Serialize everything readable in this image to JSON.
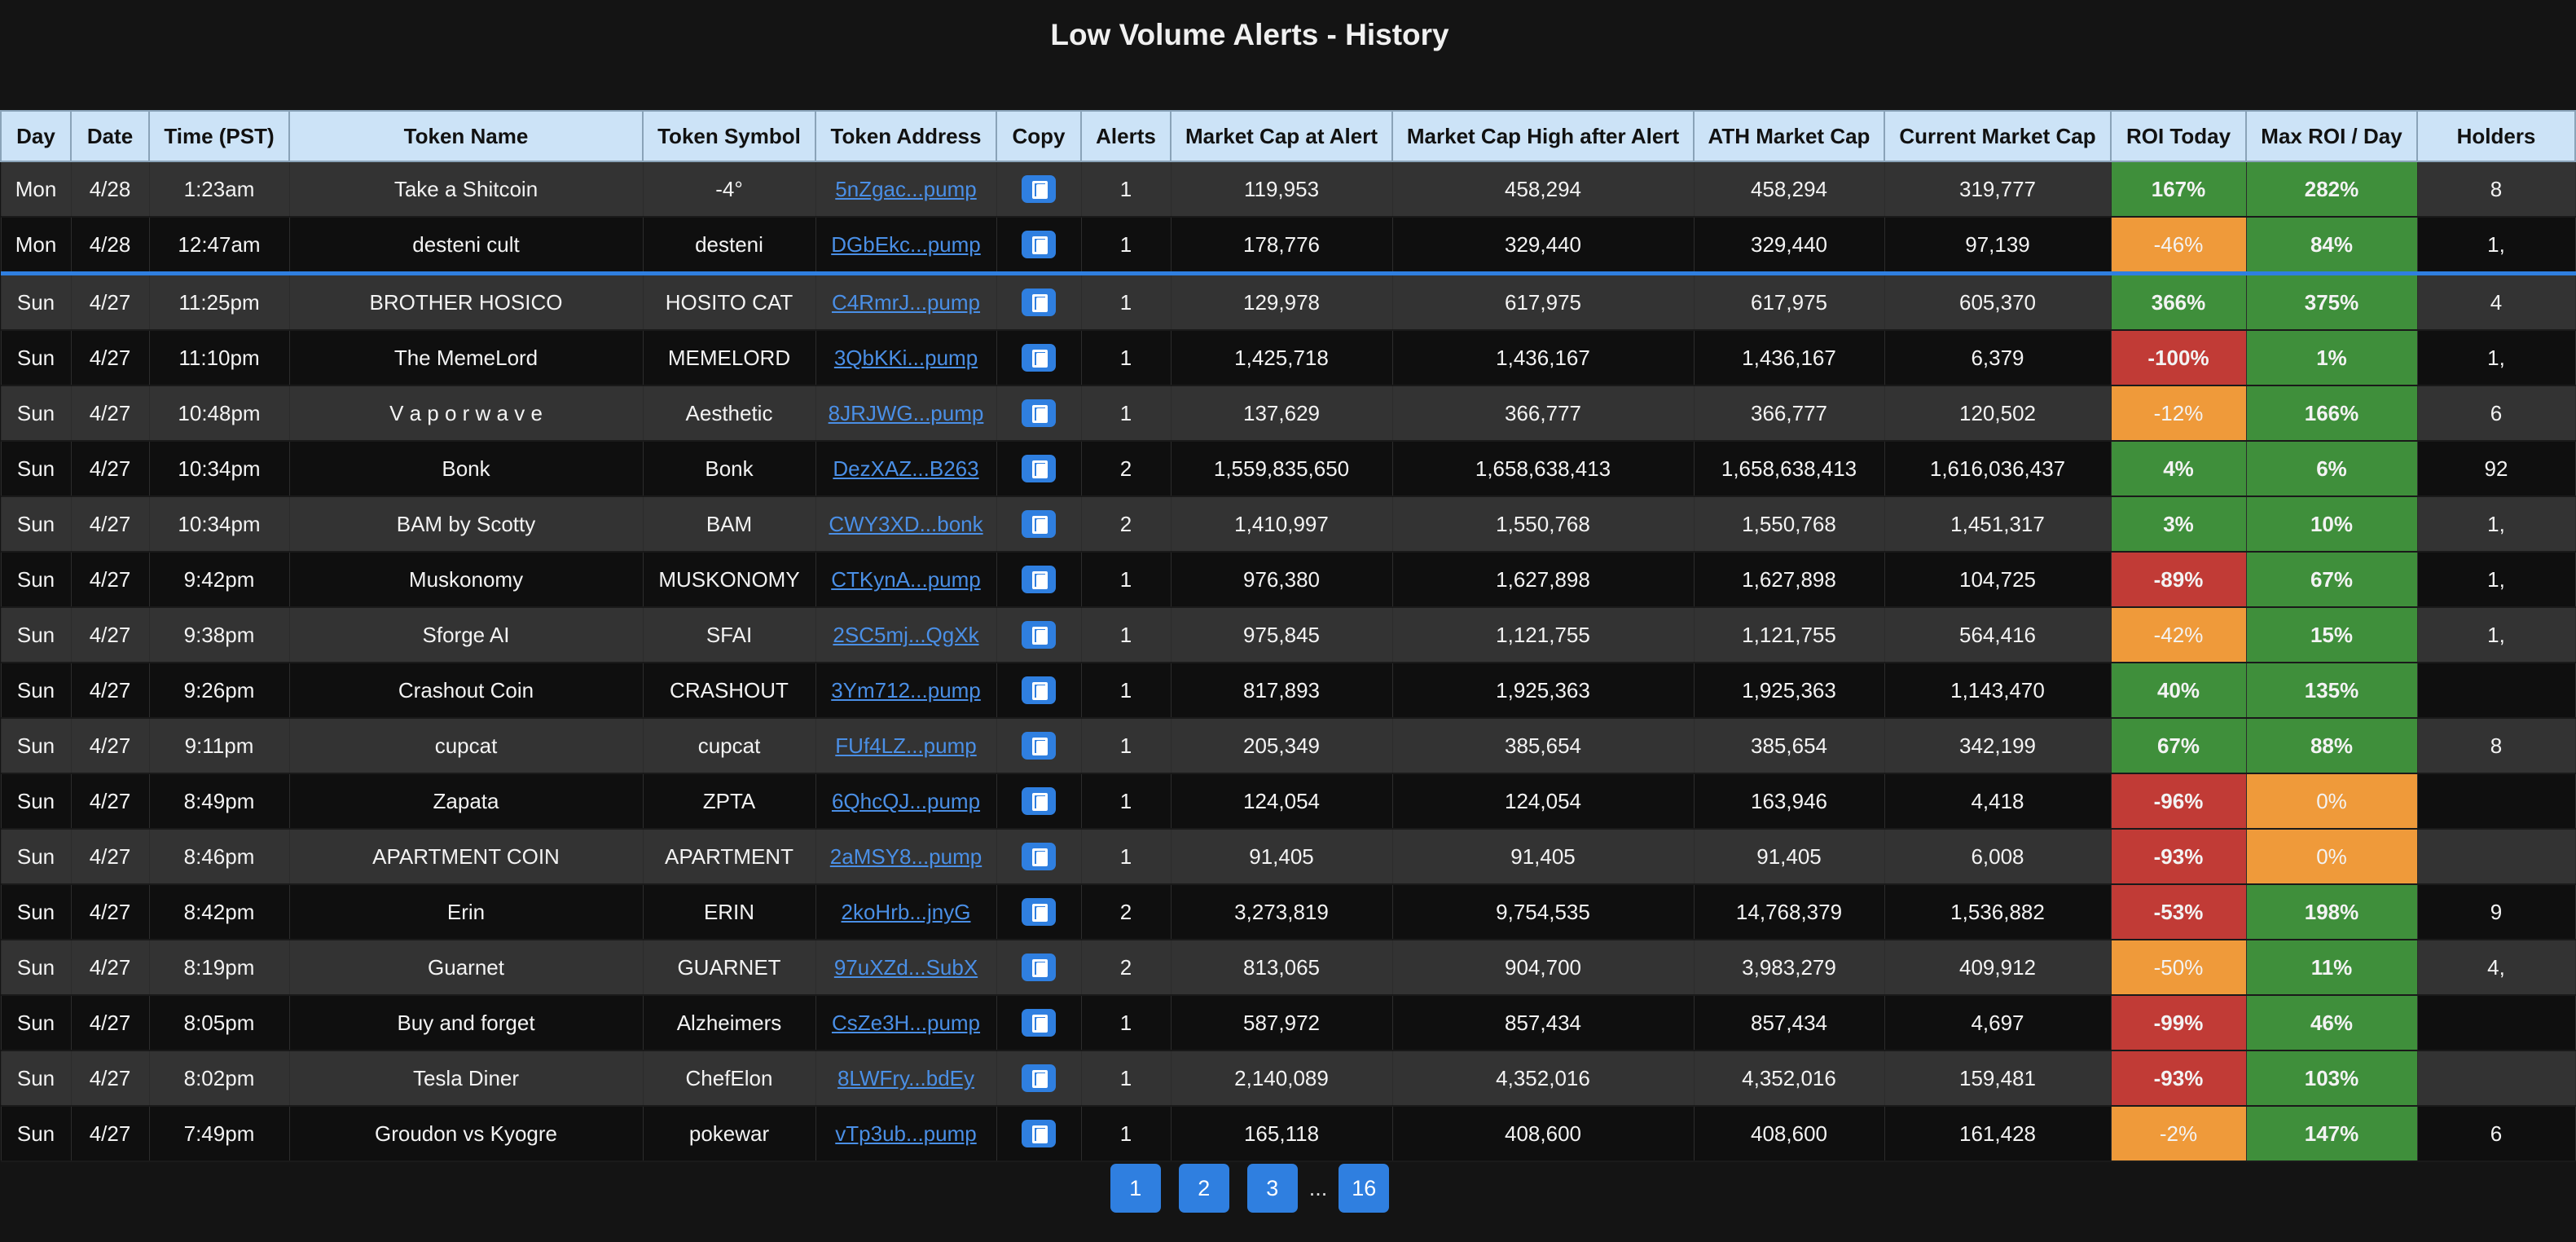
{
  "page": {
    "title": "Low Volume Alerts - History"
  },
  "colors": {
    "positive": "#3f8f3b",
    "warning": "#ef9a3a",
    "negative": "#c13b36",
    "accent": "#2f7fe0",
    "header_bg": "#cce3f7"
  },
  "table": {
    "columns": [
      "Day",
      "Date",
      "Time (PST)",
      "Token Name",
      "Token Symbol",
      "Token Address",
      "Copy",
      "Alerts",
      "Market Cap at Alert",
      "Market Cap High after Alert",
      "ATH Market Cap",
      "Current Market Cap",
      "ROI Today",
      "Max ROI / Day",
      "Holders"
    ],
    "rows": [
      {
        "day": "Mon",
        "date": "4/28",
        "time": "1:23am",
        "name": "Take a Shitcoin",
        "symbol": "-4°",
        "address": "5nZgac...pump",
        "alerts": "1",
        "mcap_alert": "119,953",
        "mcap_high": "458,294",
        "ath": "458,294",
        "current": "319,777",
        "roi_today": "167%",
        "roi_today_status": "positive",
        "max_roi": "282%",
        "max_roi_status": "positive",
        "holders": "8"
      },
      {
        "day": "Mon",
        "date": "4/28",
        "time": "12:47am",
        "name": "desteni cult",
        "symbol": "desteni",
        "address": "DGbEkc...pump",
        "alerts": "1",
        "mcap_alert": "178,776",
        "mcap_high": "329,440",
        "ath": "329,440",
        "current": "97,139",
        "roi_today": "-46%",
        "roi_today_status": "warning",
        "max_roi": "84%",
        "max_roi_status": "positive",
        "holders": "1,"
      },
      {
        "day": "Sun",
        "date": "4/27",
        "time": "11:25pm",
        "name": "BROTHER HOSICO",
        "symbol": "HOSITO CAT",
        "address": "C4RmrJ...pump",
        "alerts": "1",
        "mcap_alert": "129,978",
        "mcap_high": "617,975",
        "ath": "617,975",
        "current": "605,370",
        "roi_today": "366%",
        "roi_today_status": "positive",
        "max_roi": "375%",
        "max_roi_status": "positive",
        "holders": "4"
      },
      {
        "day": "Sun",
        "date": "4/27",
        "time": "11:10pm",
        "name": "The MemeLord",
        "symbol": "MEMELORD",
        "address": "3QbKKi...pump",
        "alerts": "1",
        "mcap_alert": "1,425,718",
        "mcap_high": "1,436,167",
        "ath": "1,436,167",
        "current": "6,379",
        "roi_today": "-100%",
        "roi_today_status": "negative",
        "max_roi": "1%",
        "max_roi_status": "positive",
        "holders": "1,"
      },
      {
        "day": "Sun",
        "date": "4/27",
        "time": "10:48pm",
        "name": "V a p o r w a v e",
        "symbol": "Aesthetic",
        "address": "8JRJWG...pump",
        "alerts": "1",
        "mcap_alert": "137,629",
        "mcap_high": "366,777",
        "ath": "366,777",
        "current": "120,502",
        "roi_today": "-12%",
        "roi_today_status": "warning",
        "max_roi": "166%",
        "max_roi_status": "positive",
        "holders": "6"
      },
      {
        "day": "Sun",
        "date": "4/27",
        "time": "10:34pm",
        "name": "Bonk",
        "symbol": "Bonk",
        "address": "DezXAZ...B263",
        "alerts": "2",
        "mcap_alert": "1,559,835,650",
        "mcap_high": "1,658,638,413",
        "ath": "1,658,638,413",
        "current": "1,616,036,437",
        "roi_today": "4%",
        "roi_today_status": "positive",
        "max_roi": "6%",
        "max_roi_status": "positive",
        "holders": "92"
      },
      {
        "day": "Sun",
        "date": "4/27",
        "time": "10:34pm",
        "name": "BAM by Scotty",
        "symbol": "BAM",
        "address": "CWY3XD...bonk",
        "alerts": "2",
        "mcap_alert": "1,410,997",
        "mcap_high": "1,550,768",
        "ath": "1,550,768",
        "current": "1,451,317",
        "roi_today": "3%",
        "roi_today_status": "positive",
        "max_roi": "10%",
        "max_roi_status": "positive",
        "holders": "1,"
      },
      {
        "day": "Sun",
        "date": "4/27",
        "time": "9:42pm",
        "name": "Muskonomy",
        "symbol": "MUSKONOMY",
        "address": "CTKynA...pump",
        "alerts": "1",
        "mcap_alert": "976,380",
        "mcap_high": "1,627,898",
        "ath": "1,627,898",
        "current": "104,725",
        "roi_today": "-89%",
        "roi_today_status": "negative",
        "max_roi": "67%",
        "max_roi_status": "positive",
        "holders": "1,"
      },
      {
        "day": "Sun",
        "date": "4/27",
        "time": "9:38pm",
        "name": "Sforge AI",
        "symbol": "SFAI",
        "address": "2SC5mj...QgXk",
        "alerts": "1",
        "mcap_alert": "975,845",
        "mcap_high": "1,121,755",
        "ath": "1,121,755",
        "current": "564,416",
        "roi_today": "-42%",
        "roi_today_status": "warning",
        "max_roi": "15%",
        "max_roi_status": "positive",
        "holders": "1,"
      },
      {
        "day": "Sun",
        "date": "4/27",
        "time": "9:26pm",
        "name": "Crashout Coin",
        "symbol": "CRASHOUT",
        "address": "3Ym712...pump",
        "alerts": "1",
        "mcap_alert": "817,893",
        "mcap_high": "1,925,363",
        "ath": "1,925,363",
        "current": "1,143,470",
        "roi_today": "40%",
        "roi_today_status": "positive",
        "max_roi": "135%",
        "max_roi_status": "positive",
        "holders": ""
      },
      {
        "day": "Sun",
        "date": "4/27",
        "time": "9:11pm",
        "name": "cupcat",
        "symbol": "cupcat",
        "address": "FUf4LZ...pump",
        "alerts": "1",
        "mcap_alert": "205,349",
        "mcap_high": "385,654",
        "ath": "385,654",
        "current": "342,199",
        "roi_today": "67%",
        "roi_today_status": "positive",
        "max_roi": "88%",
        "max_roi_status": "positive",
        "holders": "8"
      },
      {
        "day": "Sun",
        "date": "4/27",
        "time": "8:49pm",
        "name": "Zapata",
        "symbol": "ZPTA",
        "address": "6QhcQJ...pump",
        "alerts": "1",
        "mcap_alert": "124,054",
        "mcap_high": "124,054",
        "ath": "163,946",
        "current": "4,418",
        "roi_today": "-96%",
        "roi_today_status": "negative",
        "max_roi": "0%",
        "max_roi_status": "warning",
        "holders": ""
      },
      {
        "day": "Sun",
        "date": "4/27",
        "time": "8:46pm",
        "name": "APARTMENT COIN",
        "symbol": "APARTMENT",
        "address": "2aMSY8...pump",
        "alerts": "1",
        "mcap_alert": "91,405",
        "mcap_high": "91,405",
        "ath": "91,405",
        "current": "6,008",
        "roi_today": "-93%",
        "roi_today_status": "negative",
        "max_roi": "0%",
        "max_roi_status": "warning",
        "holders": ""
      },
      {
        "day": "Sun",
        "date": "4/27",
        "time": "8:42pm",
        "name": "Erin",
        "symbol": "ERIN",
        "address": "2koHrb...jnyG",
        "alerts": "2",
        "mcap_alert": "3,273,819",
        "mcap_high": "9,754,535",
        "ath": "14,768,379",
        "current": "1,536,882",
        "roi_today": "-53%",
        "roi_today_status": "negative",
        "max_roi": "198%",
        "max_roi_status": "positive",
        "holders": "9"
      },
      {
        "day": "Sun",
        "date": "4/27",
        "time": "8:19pm",
        "name": "Guarnet",
        "symbol": "GUARNET",
        "address": "97uXZd...SubX",
        "alerts": "2",
        "mcap_alert": "813,065",
        "mcap_high": "904,700",
        "ath": "3,983,279",
        "current": "409,912",
        "roi_today": "-50%",
        "roi_today_status": "warning",
        "max_roi": "11%",
        "max_roi_status": "positive",
        "holders": "4,"
      },
      {
        "day": "Sun",
        "date": "4/27",
        "time": "8:05pm",
        "name": "Buy and forget",
        "symbol": "Alzheimers",
        "address": "CsZe3H...pump",
        "alerts": "1",
        "mcap_alert": "587,972",
        "mcap_high": "857,434",
        "ath": "857,434",
        "current": "4,697",
        "roi_today": "-99%",
        "roi_today_status": "negative",
        "max_roi": "46%",
        "max_roi_status": "positive",
        "holders": ""
      },
      {
        "day": "Sun",
        "date": "4/27",
        "time": "8:02pm",
        "name": "Tesla Diner",
        "symbol": "ChefElon",
        "address": "8LWFry...bdEy",
        "alerts": "1",
        "mcap_alert": "2,140,089",
        "mcap_high": "4,352,016",
        "ath": "4,352,016",
        "current": "159,481",
        "roi_today": "-93%",
        "roi_today_status": "negative",
        "max_roi": "103%",
        "max_roi_status": "positive",
        "holders": ""
      },
      {
        "day": "Sun",
        "date": "4/27",
        "time": "7:49pm",
        "name": "Groudon vs Kyogre",
        "symbol": "pokewar",
        "address": "vTp3ub...pump",
        "alerts": "1",
        "mcap_alert": "165,118",
        "mcap_high": "408,600",
        "ath": "408,600",
        "current": "161,428",
        "roi_today": "-2%",
        "roi_today_status": "warning",
        "max_roi": "147%",
        "max_roi_status": "positive",
        "holders": "6"
      }
    ]
  },
  "pagination": {
    "pages": [
      "1",
      "2",
      "3",
      "16"
    ],
    "ellipsis": "..."
  }
}
